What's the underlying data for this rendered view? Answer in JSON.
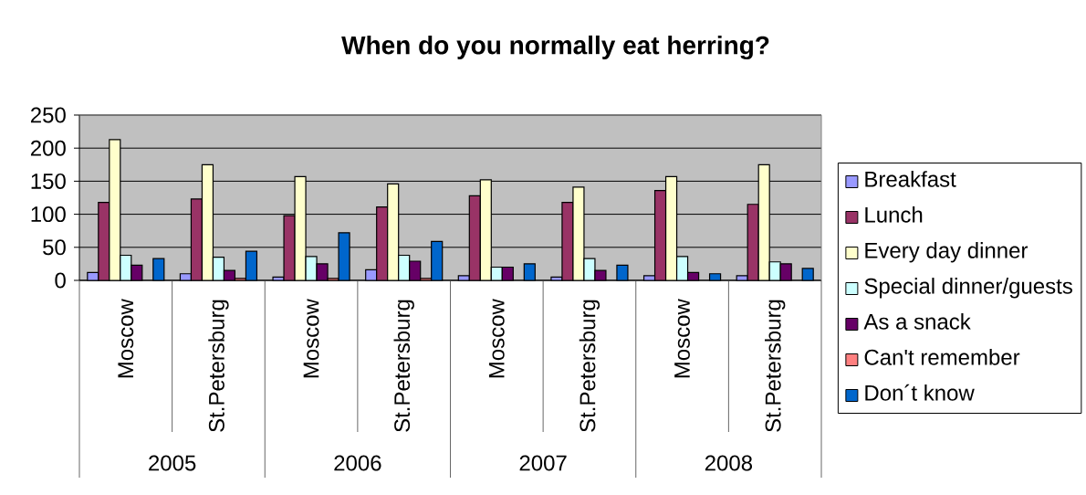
{
  "chart_data": {
    "type": "bar",
    "title": "When do you normally eat herring?",
    "categories": [
      "Moscow",
      "St.Petersburg",
      "Moscow",
      "St.Petersburg",
      "Moscow",
      "St.Petersburg",
      "Moscow",
      "St.Petersburg"
    ],
    "annotations": [
      "2005",
      "2006",
      "2007",
      "2008"
    ],
    "series": [
      {
        "name": "Breakfast",
        "color": "#9999ff",
        "values": [
          12,
          10,
          5,
          16,
          7,
          5,
          7,
          7
        ]
      },
      {
        "name": "Lunch",
        "color": "#993366",
        "values": [
          118,
          123,
          98,
          111,
          128,
          118,
          136,
          115
        ]
      },
      {
        "name": "Every day dinner",
        "color": "#ffffcc",
        "values": [
          213,
          175,
          157,
          146,
          152,
          141,
          157,
          175
        ]
      },
      {
        "name": "Special dinner/guests",
        "color": "#ccffff",
        "values": [
          38,
          35,
          36,
          38,
          20,
          33,
          36,
          28
        ]
      },
      {
        "name": "As a snack",
        "color": "#660066",
        "values": [
          23,
          15,
          25,
          29,
          20,
          15,
          12,
          25
        ]
      },
      {
        "name": "Can't remember",
        "color": "#ff8080",
        "values": [
          null,
          3,
          3,
          3,
          null,
          null,
          null,
          null
        ]
      },
      {
        "name": "Don´t know",
        "color": "#0066cc",
        "values": [
          33,
          44,
          72,
          59,
          25,
          23,
          10,
          18
        ]
      }
    ],
    "ylim": [
      0,
      250
    ],
    "yticks": [
      0,
      50,
      100,
      150,
      200,
      250
    ],
    "grid": "y",
    "legend": "right"
  }
}
